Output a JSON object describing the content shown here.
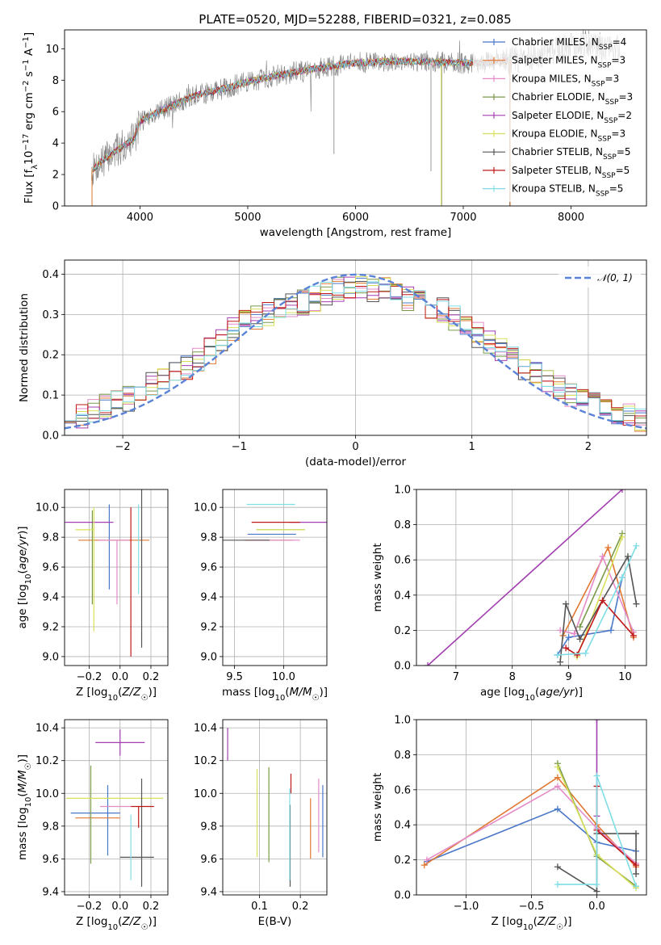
{
  "figure": {
    "title": "PLATE=0520, MJD=52288, FIBERID=0321, z=0.085"
  },
  "colors": {
    "Chabrier MILES": "#4a78c8",
    "Salpeter MILES": "#e07832",
    "Kroupa MILES": "#e48bc8",
    "Chabrier ELODIE": "#7a9a4a",
    "Salpeter ELODIE": "#a23fb0",
    "Kroupa ELODIE": "#d8e05a",
    "Chabrier STELIB": "#555555",
    "Salpeter STELIB": "#c01818",
    "Kroupa STELIB": "#7fdde6",
    "spectrum": "#808080",
    "gaussian": "#5a82d6"
  },
  "chart_data": [
    {
      "id": "spectrum",
      "type": "line",
      "title": "PLATE=0520, MJD=52288, FIBERID=0321, z=0.085",
      "xlabel": "wavelength [Angstrom, rest frame]",
      "ylabel": "Flux [fλ10⁻¹⁷ erg cm⁻² s⁻¹ A⁻¹]",
      "xlim": [
        3300,
        8700
      ],
      "ylim": [
        0,
        11.2
      ],
      "xticks": [
        "4000",
        "5000",
        "6000",
        "7000",
        "8000"
      ],
      "yticks": [
        "0",
        "2",
        "4",
        "6",
        "8",
        "10"
      ],
      "grid": false,
      "legend_position": "top-right",
      "legend": [
        "Chabrier MILES, N_SSP=4",
        "Salpeter MILES, N_SSP=3",
        "Kroupa MILES, N_SSP=3",
        "Chabrier ELODIE, N_SSP=3",
        "Salpeter ELODIE, N_SSP=2",
        "Kroupa ELODIE, N_SSP=3",
        "Chabrier STELIB, N_SSP=5",
        "Salpeter STELIB, N_SSP=5",
        "Kroupa STELIB, N_SSP=5"
      ],
      "continuum": {
        "x": [
          3550,
          3650,
          3800,
          3950,
          4000,
          4200,
          4500,
          4800,
          5000,
          5200,
          5500,
          5800,
          6000,
          6300,
          6600,
          6900,
          7200,
          7500,
          7800,
          8100,
          8450
        ],
        "y": [
          2.2,
          2.9,
          3.6,
          4.3,
          5.4,
          6.1,
          7.0,
          7.5,
          7.9,
          8.2,
          8.6,
          8.9,
          9.1,
          9.2,
          9.2,
          9.1,
          9.1,
          9.3,
          9.8,
          10.4,
          10.0
        ]
      }
    },
    {
      "id": "residuals",
      "type": "line",
      "xlabel": "(data-model)/error",
      "ylabel": "Normed distribution",
      "xlim": [
        -2.5,
        2.5
      ],
      "ylim": [
        0,
        0.435
      ],
      "xticks": [
        "−2",
        "−1",
        "0",
        "1",
        "2"
      ],
      "yticks": [
        "0.0",
        "0.1",
        "0.2",
        "0.3",
        "0.4"
      ],
      "grid": true,
      "legend": [
        "𝒩(0, 1)"
      ],
      "legend_position": "top-right",
      "bin_centers": [
        -2.45,
        -2.35,
        -2.25,
        -2.15,
        -2.05,
        -1.95,
        -1.85,
        -1.75,
        -1.65,
        -1.55,
        -1.45,
        -1.35,
        -1.25,
        -1.15,
        -1.05,
        -0.95,
        -0.85,
        -0.75,
        -0.65,
        -0.55,
        -0.45,
        -0.35,
        -0.25,
        -0.15,
        -0.05,
        0.05,
        0.15,
        0.25,
        0.35,
        0.45,
        0.55,
        0.65,
        0.75,
        0.85,
        0.95,
        1.05,
        1.15,
        1.25,
        1.35,
        1.45,
        1.55,
        1.65,
        1.75,
        1.85,
        1.95,
        2.05,
        2.15,
        2.25,
        2.35,
        2.45
      ],
      "histogram_mean": [
        0.04,
        0.05,
        0.06,
        0.07,
        0.08,
        0.09,
        0.11,
        0.13,
        0.14,
        0.16,
        0.17,
        0.19,
        0.21,
        0.24,
        0.26,
        0.28,
        0.29,
        0.3,
        0.31,
        0.32,
        0.33,
        0.34,
        0.35,
        0.36,
        0.37,
        0.37,
        0.36,
        0.36,
        0.35,
        0.34,
        0.33,
        0.32,
        0.31,
        0.29,
        0.27,
        0.25,
        0.23,
        0.21,
        0.19,
        0.17,
        0.15,
        0.13,
        0.12,
        0.1,
        0.09,
        0.08,
        0.07,
        0.06,
        0.05,
        0.04
      ]
    },
    {
      "id": "age-vs-Z",
      "type": "scatter",
      "xlabel": "Z [log10(Z/Z☉)]",
      "ylabel": "age  [log10(age/yr)]",
      "xlim": [
        -0.36,
        0.31
      ],
      "ylim": [
        8.94,
        10.12
      ],
      "xticks": [
        "−0.2",
        "0.0",
        "0.2"
      ],
      "yticks": [
        "9.0",
        "9.2",
        "9.4",
        "9.6",
        "9.8",
        "10.0"
      ],
      "grid": true,
      "points": [
        {
          "model": "Chabrier MILES",
          "x": -0.07,
          "xerr": [
            0.0,
            0.0
          ],
          "y": 9.82,
          "yerr": [
            0.37,
            0.2
          ]
        },
        {
          "model": "Salpeter MILES",
          "x": -0.04,
          "xerr": [
            0.23,
            0.23
          ],
          "y": 9.78,
          "yerr": [
            0.0,
            0.0
          ]
        },
        {
          "model": "Kroupa MILES",
          "x": -0.02,
          "xerr": [
            0.12,
            0.08
          ],
          "y": 9.78,
          "yerr": [
            0.43,
            0.0
          ]
        },
        {
          "model": "Chabrier ELODIE",
          "x": -0.18,
          "xerr": [
            0.0,
            0.0
          ],
          "y": 9.85,
          "yerr": [
            0.5,
            0.13
          ]
        },
        {
          "model": "Salpeter ELODIE",
          "x": -0.2,
          "xerr": [
            0.0,
            0.0
          ],
          "y": 9.9,
          "yerr": [
            0.0,
            0.0
          ]
        },
        {
          "model": "Kroupa ELODIE",
          "x": -0.17,
          "xerr": [
            0.12,
            0.0
          ],
          "y": 9.85,
          "yerr": [
            0.68,
            0.15
          ]
        },
        {
          "model": "Chabrier STELIB",
          "x": 0.14,
          "xerr": [
            0.0,
            0.0
          ],
          "y": 9.78,
          "yerr": [
            0.72,
            0.34
          ]
        },
        {
          "model": "Salpeter STELIB",
          "x": 0.07,
          "xerr": [
            0.0,
            0.0
          ],
          "y": 9.9,
          "yerr": [
            0.9,
            0.1
          ]
        },
        {
          "model": "Kroupa STELIB",
          "x": 0.12,
          "xerr": [
            0.0,
            0.0
          ],
          "y": 10.02,
          "yerr": [
            0.6,
            0.0
          ]
        }
      ]
    },
    {
      "id": "age-vs-mass",
      "type": "scatter",
      "xlabel": "mass [log10(M/M☉)]",
      "ylabel": "",
      "xlim": [
        9.38,
        10.44
      ],
      "ylim": [
        8.94,
        10.12
      ],
      "xticks": [
        "9.5",
        "10.0"
      ],
      "yticks": [
        "9.0",
        "9.2",
        "9.4",
        "9.6",
        "9.8",
        "10.0"
      ],
      "grid": true,
      "points": [
        {
          "model": "Chabrier MILES",
          "x": 9.88,
          "y": 9.82
        },
        {
          "model": "Salpeter MILES",
          "x": 9.85,
          "y": 9.78
        },
        {
          "model": "Kroupa MILES",
          "x": 9.92,
          "y": 9.78
        },
        {
          "model": "Chabrier ELODIE",
          "x": 9.97,
          "y": 9.85
        },
        {
          "model": "Salpeter ELODIE",
          "x": 10.31,
          "y": 9.9
        },
        {
          "model": "Kroupa ELODIE",
          "x": 9.97,
          "y": 9.85
        },
        {
          "model": "Chabrier STELIB",
          "x": 9.61,
          "y": 9.78
        },
        {
          "model": "Salpeter STELIB",
          "x": 9.92,
          "y": 9.9
        },
        {
          "model": "Kroupa STELIB",
          "x": 9.87,
          "y": 10.02
        }
      ]
    },
    {
      "id": "massweight-vs-age",
      "type": "line",
      "xlabel": "age  [log10(age/yr)]",
      "ylabel": "mass weight",
      "xlim": [
        6.3,
        10.38
      ],
      "ylim": [
        0.0,
        1.0
      ],
      "xticks": [
        "7",
        "8",
        "9",
        "10"
      ],
      "yticks": [
        "0.0",
        "0.2",
        "0.4",
        "0.6",
        "0.8",
        "1.0"
      ],
      "grid": true,
      "series": [
        {
          "model": "Chabrier MILES",
          "x": [
            8.8,
            9.0,
            9.75,
            9.95
          ],
          "y": [
            0.06,
            0.16,
            0.2,
            0.5
          ]
        },
        {
          "model": "Salpeter MILES",
          "x": [
            8.9,
            9.7,
            10.15
          ],
          "y": [
            0.17,
            0.67,
            0.16
          ]
        },
        {
          "model": "Kroupa MILES",
          "x": [
            8.85,
            9.1,
            9.6,
            10.15
          ],
          "y": [
            0.2,
            0.18,
            0.62,
            0.19
          ]
        },
        {
          "model": "Chabrier ELODIE",
          "x": [
            9.2,
            9.95
          ],
          "y": [
            0.22,
            0.75
          ]
        },
        {
          "model": "Salpeter ELODIE",
          "x": [
            6.5,
            9.95
          ],
          "y": [
            0.0,
            1.0
          ]
        },
        {
          "model": "Kroupa ELODIE",
          "x": [
            9.15,
            9.95
          ],
          "y": [
            0.05,
            0.73
          ]
        },
        {
          "model": "Chabrier STELIB",
          "x": [
            8.85,
            8.95,
            9.2,
            10.05,
            10.2
          ],
          "y": [
            0.02,
            0.35,
            0.15,
            0.62,
            0.35
          ]
        },
        {
          "model": "Salpeter STELIB",
          "x": [
            8.95,
            9.15,
            9.6,
            10.15
          ],
          "y": [
            0.1,
            0.06,
            0.37,
            0.17
          ]
        },
        {
          "model": "Kroupa STELIB",
          "x": [
            8.8,
            9.3,
            9.95,
            10.2
          ],
          "y": [
            0.06,
            0.07,
            0.5,
            0.68
          ]
        }
      ]
    },
    {
      "id": "mass-vs-Z",
      "type": "scatter",
      "xlabel": "Z [log10(Z/Z☉)]",
      "ylabel": "mass [log10(M/M☉)]",
      "xlim": [
        -0.36,
        0.31
      ],
      "ylim": [
        9.38,
        10.45
      ],
      "xticks": [
        "−0.2",
        "0.0",
        "0.2"
      ],
      "yticks": [
        "9.4",
        "9.6",
        "9.8",
        "10.0",
        "10.2",
        "10.4"
      ],
      "grid": true,
      "points": [
        {
          "model": "Chabrier MILES",
          "x": -0.08,
          "xerr": [
            0.24,
            0.08
          ],
          "y": 9.88,
          "yerr": [
            0.26,
            0.17
          ]
        },
        {
          "model": "Salpeter MILES",
          "x": -0.15,
          "xerr": [
            0.14,
            0.15
          ],
          "y": 9.85,
          "yerr": [
            0.0,
            0.0
          ]
        },
        {
          "model": "Kroupa MILES",
          "x": -0.05,
          "xerr": [
            0.08,
            0.12
          ],
          "y": 9.92,
          "yerr": [
            0.0,
            0.0
          ]
        },
        {
          "model": "Chabrier ELODIE",
          "x": -0.19,
          "xerr": [
            0.0,
            0.0
          ],
          "y": 9.97,
          "yerr": [
            0.4,
            0.2
          ]
        },
        {
          "model": "Salpeter ELODIE",
          "x": 0.0,
          "xerr": [
            0.16,
            0.16
          ],
          "y": 10.31,
          "yerr": [
            0.08,
            0.08
          ]
        },
        {
          "model": "Kroupa ELODIE",
          "x": -0.05,
          "xerr": [
            0.3,
            0.33
          ],
          "y": 9.97,
          "yerr": [
            0.0,
            0.0
          ]
        },
        {
          "model": "Chabrier STELIB",
          "x": 0.14,
          "xerr": [
            0.14,
            0.08
          ],
          "y": 9.61,
          "yerr": [
            0.18,
            0.48
          ]
        },
        {
          "model": "Salpeter STELIB",
          "x": 0.12,
          "xerr": [
            0.05,
            0.1
          ],
          "y": 9.92,
          "yerr": [
            0.13,
            0.0
          ]
        },
        {
          "model": "Kroupa STELIB",
          "x": 0.07,
          "xerr": [
            0.0,
            0.0
          ],
          "y": 9.87,
          "yerr": [
            0.4,
            0.0
          ]
        }
      ]
    },
    {
      "id": "mass-vs-ebv",
      "type": "scatter",
      "xlabel": "E(B-V)",
      "ylabel": "",
      "xlim": [
        0.01,
        0.265
      ],
      "ylim": [
        9.38,
        10.45
      ],
      "xticks": [
        "0.1",
        "0.2"
      ],
      "yticks": [
        "9.4",
        "9.6",
        "9.8",
        "10.0",
        "10.2",
        "10.4"
      ],
      "grid": true,
      "points": [
        {
          "model": "Chabrier MILES",
          "x": 0.255,
          "y": 9.83,
          "yerr": [
            0.22,
            0.22
          ]
        },
        {
          "model": "Salpeter MILES",
          "x": 0.225,
          "y": 9.85,
          "yerr": [
            0.25,
            0.12
          ]
        },
        {
          "model": "Kroupa MILES",
          "x": 0.245,
          "y": 9.92,
          "yerr": [
            0.28,
            0.17
          ]
        },
        {
          "model": "Chabrier ELODIE",
          "x": 0.123,
          "y": 9.87,
          "yerr": [
            0.29,
            0.29
          ]
        },
        {
          "model": "Salpeter ELODIE",
          "x": 0.022,
          "y": 10.3,
          "yerr": [
            0.1,
            0.1
          ]
        },
        {
          "model": "Kroupa ELODIE",
          "x": 0.094,
          "y": 9.88,
          "yerr": [
            0.27,
            0.27
          ]
        },
        {
          "model": "Chabrier STELIB",
          "x": 0.175,
          "y": 9.83,
          "yerr": [
            0.4,
            0.1
          ]
        },
        {
          "model": "Salpeter STELIB",
          "x": 0.177,
          "y": 10.0,
          "yerr": [
            0.0,
            0.12
          ]
        },
        {
          "model": "Kroupa STELIB",
          "x": 0.174,
          "y": 9.75,
          "yerr": [
            0.28,
            0.28
          ]
        }
      ]
    },
    {
      "id": "massweight-vs-Z",
      "type": "line",
      "xlabel": "Z [log10(Z/Z☉)]",
      "ylabel": "mass weight",
      "xlim": [
        -1.38,
        0.38
      ],
      "ylim": [
        0.0,
        1.0
      ],
      "xticks": [
        "−1.0",
        "−0.5",
        "0.0"
      ],
      "yticks": [
        "0.0",
        "0.2",
        "0.4",
        "0.6",
        "0.8",
        "1.0"
      ],
      "grid": true,
      "series": [
        {
          "model": "Chabrier MILES",
          "x": [
            -1.3,
            -0.3,
            0.0,
            0.3
          ],
          "y": [
            0.19,
            0.49,
            0.3,
            0.25
          ]
        },
        {
          "model": "Salpeter MILES",
          "x": [
            -1.32,
            -0.3,
            0.0,
            0.3
          ],
          "y": [
            0.17,
            0.67,
            0.4,
            0.16
          ]
        },
        {
          "model": "Kroupa MILES",
          "x": [
            -1.3,
            -0.3,
            0.0,
            0.3
          ],
          "y": [
            0.2,
            0.62,
            0.38,
            0.18
          ]
        },
        {
          "model": "Chabrier ELODIE",
          "x": [
            -0.3,
            0.0,
            0.3
          ],
          "y": [
            0.75,
            0.22,
            0.05
          ]
        },
        {
          "model": "Salpeter ELODIE",
          "x": [
            0.0,
            0.0
          ],
          "y": [
            1.0,
            0.45
          ]
        },
        {
          "model": "Kroupa ELODIE",
          "x": [
            -0.3,
            0.0,
            0.3
          ],
          "y": [
            0.73,
            0.23,
            0.04
          ]
        },
        {
          "model": "Chabrier STELIB",
          "x": [
            -0.3,
            0.0,
            0.0,
            0.3,
            0.3
          ],
          "y": [
            0.16,
            0.02,
            0.35,
            0.35,
            0.12
          ]
        },
        {
          "model": "Salpeter STELIB",
          "x": [
            0.0,
            0.0,
            0.3
          ],
          "y": [
            0.62,
            0.37,
            0.17
          ]
        },
        {
          "model": "Kroupa STELIB",
          "x": [
            -0.3,
            0.0,
            0.0,
            0.3
          ],
          "y": [
            0.06,
            0.06,
            0.68,
            0.05
          ]
        }
      ]
    }
  ]
}
